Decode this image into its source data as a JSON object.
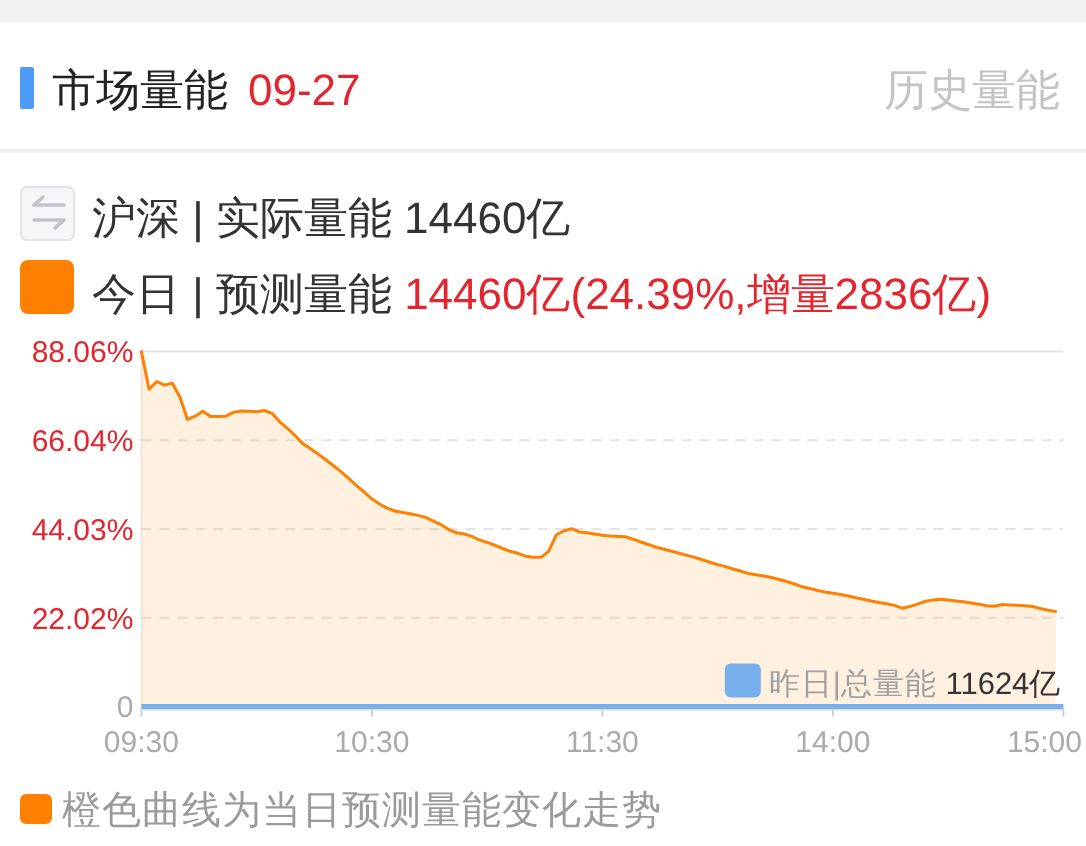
{
  "chart_data": {
    "type": "area",
    "title": "市场量能",
    "subtitle": "09-27",
    "annotations": [
      "历史量能",
      "沪深 | 实际量能 14460亿",
      "今日 | 预测量能 14460亿(24.39%,增量2836亿)"
    ],
    "categories": [
      "09:30",
      null,
      null,
      null,
      null,
      null,
      null,
      null,
      null,
      null,
      null,
      null,
      null,
      null,
      null,
      null,
      null,
      null,
      null,
      null,
      null,
      null,
      null,
      null,
      null,
      null,
      null,
      null,
      null,
      null,
      "10:30",
      null,
      null,
      null,
      null,
      null,
      null,
      null,
      null,
      null,
      null,
      null,
      null,
      null,
      null,
      null,
      null,
      null,
      null,
      null,
      null,
      null,
      null,
      null,
      null,
      null,
      null,
      null,
      null,
      null,
      "11:30",
      null,
      null,
      null,
      null,
      null,
      null,
      null,
      null,
      null,
      null,
      null,
      null,
      null,
      null,
      null,
      null,
      null,
      null,
      null,
      null,
      null,
      null,
      null,
      null,
      null,
      null,
      null,
      null,
      null,
      "14:00",
      null,
      null,
      null,
      null,
      null,
      null,
      null,
      null,
      null,
      null,
      null,
      null,
      null,
      null,
      null,
      null,
      null,
      null,
      null,
      null,
      null,
      null,
      null,
      null,
      null,
      null,
      null,
      null,
      null,
      "15:00"
    ],
    "series": [
      {
        "name": "橙色曲线为当日预测量能变化走势",
        "color": "#ff8000",
        "values": [
          88,
          78.7,
          80.6,
          79.7,
          80.2,
          76.8,
          71.2,
          72,
          73.2,
          71.9,
          71.9,
          72,
          73,
          73.3,
          73.2,
          73.1,
          73.4,
          72.7,
          70.6,
          69,
          67.2,
          65.2,
          63.9,
          62.6,
          61.2,
          59.7,
          58.2,
          56.5,
          54.8,
          53.2,
          51.5,
          50.2,
          49.2,
          48.5,
          48.1,
          47.8,
          47.4,
          46.9,
          46,
          45.1,
          43.9,
          43.1,
          42.8,
          42.2,
          41.3,
          40.7,
          40,
          39.2,
          38.5,
          38,
          37.3,
          37,
          37,
          38.5,
          42.6,
          43.6,
          44.1,
          43.3,
          43.1,
          42.8,
          42.5,
          42.3,
          42.2,
          42.1,
          41.5,
          40.8,
          40.2,
          39.5,
          39,
          38.5,
          38,
          37.5,
          37,
          36.4,
          35.8,
          35.2,
          34.7,
          34.1,
          33.6,
          33,
          32.7,
          32.4,
          32,
          31.5,
          31,
          30.4,
          29.7,
          29.3,
          28.8,
          28.4,
          28.1,
          27.8,
          27.4,
          27,
          26.6,
          26.2,
          25.8,
          25.5,
          25.1,
          24.4,
          24.8,
          25.4,
          26.1,
          26.4,
          26.6,
          26.4,
          26.2,
          26,
          25.7,
          25.4,
          25,
          24.9,
          25.3,
          25.2,
          25.1,
          25,
          24.8,
          24.3,
          23.9,
          23.6,
          null
        ]
      }
    ],
    "ylim": [
      0,
      88.06
    ],
    "yticks": [
      0,
      {
        "value": 22.02,
        "label": "22.02%"
      },
      {
        "value": 44.03,
        "label": "44.03%"
      },
      {
        "value": 66.04,
        "label": "66.04%"
      },
      {
        "value": 88.06,
        "label": "88.06%"
      }
    ],
    "grid": "y",
    "legend": "bottom left",
    "ref_lines": [
      {
        "axis": "y",
        "value": 0,
        "label": "昨日|总量能 11624亿",
        "color": "#78b0ee"
      }
    ]
  }
}
